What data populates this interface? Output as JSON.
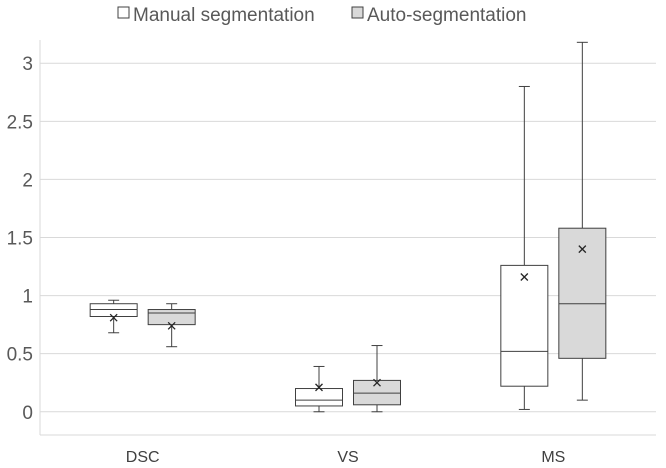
{
  "chart_data": {
    "type": "box",
    "title": "",
    "xlabel": "",
    "ylabel": "",
    "categories": [
      "DSC",
      "VS",
      "MS"
    ],
    "ylim": [
      -0.2,
      3.2
    ],
    "yticks": [
      "0",
      "0.5",
      "1",
      "1.5",
      "2",
      "2.5",
      "3"
    ],
    "grid": true,
    "legend_position": "top",
    "series": [
      {
        "name": "Manual segmentation",
        "color": "#ffffff",
        "boxes": [
          {
            "min": 0.68,
            "q1": 0.82,
            "median": 0.88,
            "q3": 0.93,
            "max": 0.96,
            "mean": 0.81
          },
          {
            "min": 0.0,
            "q1": 0.05,
            "median": 0.1,
            "q3": 0.2,
            "max": 0.39,
            "mean": 0.21
          },
          {
            "min": 0.02,
            "q1": 0.22,
            "median": 0.52,
            "q3": 1.26,
            "max": 2.8,
            "mean": 1.16
          }
        ]
      },
      {
        "name": "Auto-segmentation",
        "color": "#d9d9d9",
        "boxes": [
          {
            "min": 0.56,
            "q1": 0.75,
            "median": 0.85,
            "q3": 0.88,
            "max": 0.93,
            "mean": 0.74
          },
          {
            "min": 0.0,
            "q1": 0.06,
            "median": 0.16,
            "q3": 0.27,
            "max": 0.57,
            "mean": 0.25
          },
          {
            "min": 0.1,
            "q1": 0.46,
            "median": 0.93,
            "q3": 1.58,
            "max": 3.18,
            "mean": 1.4
          }
        ]
      }
    ]
  }
}
